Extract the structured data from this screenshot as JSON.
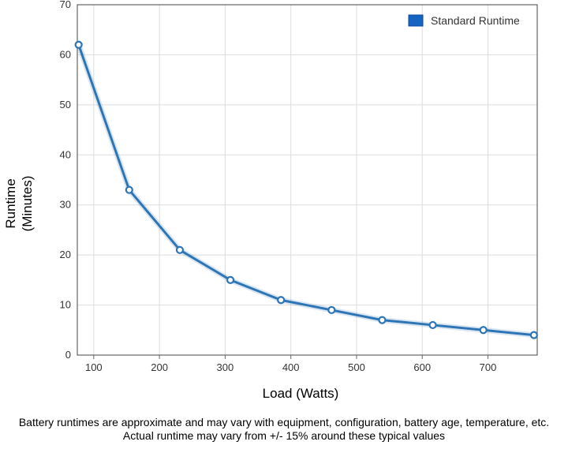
{
  "chart_data": {
    "type": "line",
    "title": "",
    "xlabel": "Load (Watts)",
    "ylabel_lines": [
      "Runtime",
      "(Minutes)"
    ],
    "xlim": [
      75,
      775
    ],
    "ylim": [
      0,
      70
    ],
    "x_ticks": [
      100,
      200,
      300,
      400,
      500,
      600,
      700
    ],
    "y_ticks": [
      0,
      10,
      20,
      30,
      40,
      50,
      60,
      70
    ],
    "grid": true,
    "legend_position": "top-right",
    "series": [
      {
        "name": "Standard Runtime",
        "color": "#2e75b6",
        "legend_color": "#1565c0",
        "points": [
          {
            "x": 77,
            "y": 62
          },
          {
            "x": 154,
            "y": 33
          },
          {
            "x": 231,
            "y": 21
          },
          {
            "x": 308,
            "y": 15
          },
          {
            "x": 385,
            "y": 11
          },
          {
            "x": 462,
            "y": 9
          },
          {
            "x": 539,
            "y": 7
          },
          {
            "x": 616,
            "y": 6
          },
          {
            "x": 693,
            "y": 5
          },
          {
            "x": 770,
            "y": 4
          }
        ]
      }
    ]
  },
  "footnote": {
    "line1": "Battery runtimes are approximate and may vary with equipment, configuration, battery age, temperature, etc.",
    "line2": "Actual runtime may vary from +/- 15% around these typical values"
  }
}
